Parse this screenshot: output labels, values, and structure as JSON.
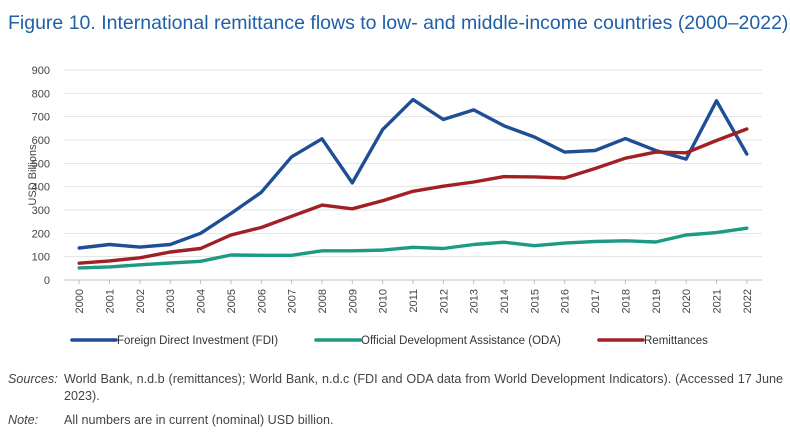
{
  "figure": {
    "title": "Figure 10. International remittance flows to low- and middle-income countries (2000–2022)"
  },
  "chart_data": {
    "type": "line",
    "ylabel": "USD Billions",
    "xlabel": "",
    "ylim": [
      0,
      900
    ],
    "yticks": [
      0,
      100,
      200,
      300,
      400,
      500,
      600,
      700,
      800,
      900
    ],
    "grid": "horizontal",
    "legend_position": "bottom",
    "categories": [
      "2000",
      "2001",
      "2002",
      "2003",
      "2004",
      "2005",
      "2006",
      "2007",
      "2008",
      "2009",
      "2010",
      "2011",
      "2012",
      "2013",
      "2014",
      "2015",
      "2016",
      "2017",
      "2018",
      "2019",
      "2020",
      "2021",
      "2022"
    ],
    "series": [
      {
        "name": "Foreign Direct Investment (FDI)",
        "color": "#1f4e96",
        "values": [
          137,
          152,
          141,
          152,
          200,
          285,
          376,
          528,
          605,
          416,
          645,
          773,
          688,
          729,
          661,
          613,
          548,
          555,
          606,
          555,
          518,
          768,
          540
        ]
      },
      {
        "name": "Official Development Assistance (ODA)",
        "color": "#1d9a84",
        "values": [
          52,
          56,
          65,
          73,
          80,
          107,
          106,
          106,
          125,
          125,
          128,
          140,
          135,
          152,
          162,
          147,
          158,
          165,
          168,
          163,
          193,
          203,
          222
        ]
      },
      {
        "name": "Remittances",
        "color": "#a02024",
        "values": [
          72,
          82,
          95,
          120,
          135,
          193,
          225,
          273,
          321,
          305,
          340,
          380,
          402,
          420,
          443,
          442,
          437,
          478,
          522,
          548,
          545,
          598,
          647
        ]
      }
    ]
  },
  "footnotes": [
    {
      "label": "Sources:",
      "text": "World Bank, n.d.b (remittances); World Bank, n.d.c (FDI and ODA data from World Development Indicators). (Accessed 17  June 2023)."
    },
    {
      "label": "Note:",
      "text": "All numbers are in current (nominal) USD billion."
    }
  ]
}
